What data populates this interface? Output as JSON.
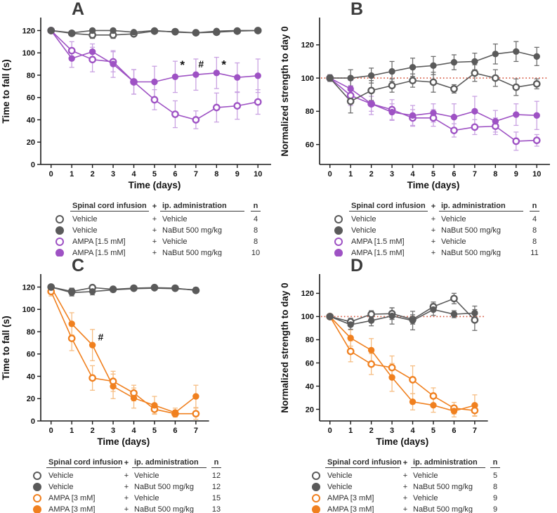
{
  "colors": {
    "axis": "#1a1a1a",
    "text": "#111111",
    "panel_label": "#3c3c3c",
    "refline": "#d0452b",
    "gray": "#5a5a5a",
    "purple": "#9e52c4",
    "orange": "#f0801f"
  },
  "legend_headers": {
    "infusion": "Spinal cord infusion",
    "plus": "+",
    "administration": "ip. administration",
    "n": "n"
  },
  "chart_data": [
    {
      "panel": "A",
      "type": "line",
      "xlabel": "Time (days)",
      "ylabel": "Time to fall (s)",
      "x": [
        0,
        1,
        2,
        3,
        4,
        5,
        6,
        7,
        8,
        9,
        10
      ],
      "xlim": [
        -0.5,
        10.5
      ],
      "ylim": [
        0,
        131
      ],
      "yticks": [
        0,
        20,
        40,
        60,
        80,
        100,
        120
      ],
      "refline": null,
      "grid": false,
      "annotations": [
        {
          "text": "*",
          "x": 6.35,
          "y": 85.5,
          "size": 17
        },
        {
          "text": "#",
          "x": 7.25,
          "y": 87,
          "size": 14
        },
        {
          "text": "*",
          "x": 8.35,
          "y": 86,
          "size": 17
        }
      ],
      "series": [
        {
          "name": "Vehicle + Vehicle",
          "marker": "open",
          "color": "#5a5a5a",
          "err_color": "#6e6e6e",
          "values": [
            120,
            117.5,
            116,
            116,
            117,
            119.5,
            119,
            118,
            118.5,
            119.5,
            120
          ],
          "err": [
            2,
            2,
            3,
            3,
            2,
            1.5,
            2,
            2,
            2,
            1.5,
            1.5
          ]
        },
        {
          "name": "Vehicle + NaBut 500 mg/kg",
          "marker": "filled",
          "color": "#5a5a5a",
          "err_color": "#6e6e6e",
          "values": [
            120,
            118,
            120,
            120,
            118.5,
            120,
            118.5,
            118,
            119.5,
            120,
            120
          ],
          "err": [
            1.5,
            1.5,
            1.5,
            1.5,
            1.5,
            1.5,
            1.5,
            1.5,
            1.5,
            1.5,
            1.5
          ]
        },
        {
          "name": "AMPA [1.5 mM] + Vehicle",
          "marker": "open",
          "color": "#9e52c4",
          "err_color": "#c9a2e2",
          "values": [
            120,
            102,
            94,
            92,
            74,
            58,
            45,
            40,
            51,
            52.5,
            56
          ],
          "err": [
            0,
            8,
            11,
            9,
            11,
            9,
            12,
            8,
            13,
            12,
            11
          ]
        },
        {
          "name": "AMPA [1.5 mM] + NaBut 500 mg/kg",
          "marker": "filled",
          "color": "#9e52c4",
          "err_color": "#c9a2e2",
          "values": [
            120,
            95,
            101,
            90,
            74,
            74,
            78.5,
            80.5,
            82,
            78,
            79.5
          ],
          "err": [
            0,
            8,
            7,
            12,
            11,
            14,
            14,
            14,
            14,
            13,
            15
          ]
        }
      ],
      "legend_rows": [
        {
          "marker": "open",
          "color": "#5a5a5a",
          "infusion": "Vehicle",
          "administration": "Vehicle",
          "n": "4"
        },
        {
          "marker": "filled",
          "color": "#5a5a5a",
          "infusion": "Vehicle",
          "administration": "NaBut 500 mg/kg",
          "n": "8"
        },
        {
          "marker": "open",
          "color": "#9e52c4",
          "infusion": "AMPA [1.5 mM]",
          "administration": "Vehicle",
          "n": "8"
        },
        {
          "marker": "filled",
          "color": "#9e52c4",
          "infusion": "AMPA [1.5 mM]",
          "administration": "NaBut 500 mg/kg",
          "n": "10"
        }
      ]
    },
    {
      "panel": "B",
      "type": "line",
      "xlabel": "Time (days)",
      "ylabel": "Normalized strength to day 0",
      "x": [
        0,
        1,
        2,
        3,
        4,
        5,
        6,
        7,
        8,
        9,
        10
      ],
      "xlim": [
        -0.5,
        10.5
      ],
      "ylim": [
        48,
        136
      ],
      "yticks": [
        60,
        80,
        100,
        120
      ],
      "refline": 100,
      "grid": false,
      "annotations": [],
      "series": [
        {
          "name": "Vehicle + Vehicle",
          "marker": "open",
          "color": "#5a5a5a",
          "err_color": "#6e6e6e",
          "values": [
            100,
            86,
            92.5,
            95.5,
            98.5,
            97.5,
            93.5,
            103,
            100,
            94.5,
            96.5
          ],
          "err": [
            0,
            7,
            6,
            4,
            4,
            6,
            2.5,
            5,
            5,
            5,
            3
          ]
        },
        {
          "name": "Vehicle + NaBut 500 mg/kg",
          "marker": "filled",
          "color": "#5a5a5a",
          "err_color": "#6e6e6e",
          "values": [
            100,
            100,
            101.5,
            104,
            106.5,
            107.5,
            109.5,
            110,
            114.5,
            116,
            113
          ],
          "err": [
            2,
            5,
            4.5,
            6,
            5.5,
            5.5,
            4.5,
            5,
            6,
            6,
            5.5
          ]
        },
        {
          "name": "AMPA [1.5 mM] + Vehicle",
          "marker": "open",
          "color": "#9e52c4",
          "err_color": "#c9a2e2",
          "values": [
            100,
            89.5,
            84.5,
            81,
            76,
            76,
            68.5,
            70.5,
            71,
            62,
            62.5
          ],
          "err": [
            0,
            6,
            6.5,
            6,
            5,
            5,
            4,
            4.5,
            5,
            5.5,
            3.5
          ]
        },
        {
          "name": "AMPA [1.5 mM] + NaBut 500 mg/kg",
          "marker": "filled",
          "color": "#9e52c4",
          "err_color": "#c9a2e2",
          "values": [
            100,
            93.5,
            84.5,
            79.5,
            77.5,
            79,
            76.5,
            80,
            74,
            78,
            77.5
          ],
          "err": [
            0,
            5,
            4.5,
            5,
            6,
            5.5,
            8,
            9,
            6.5,
            6.5,
            8.5
          ]
        }
      ],
      "legend_rows": [
        {
          "marker": "open",
          "color": "#5a5a5a",
          "infusion": "Vehicle",
          "administration": "Vehicle",
          "n": "4"
        },
        {
          "marker": "filled",
          "color": "#5a5a5a",
          "infusion": "Vehicle",
          "administration": "NaBut 500 mg/kg",
          "n": "8"
        },
        {
          "marker": "open",
          "color": "#9e52c4",
          "infusion": "AMPA [1.5 mM]",
          "administration": "Vehicle",
          "n": "8"
        },
        {
          "marker": "filled",
          "color": "#9e52c4",
          "infusion": "AMPA [1.5 mM]",
          "administration": "NaBut 500 mg/kg",
          "n": "11"
        }
      ]
    },
    {
      "panel": "C",
      "type": "line",
      "xlabel": "Time (days)",
      "ylabel": "Time to fall (s)",
      "x": [
        0,
        1,
        2,
        3,
        4,
        5,
        6,
        7
      ],
      "xlim": [
        -0.5,
        7.5
      ],
      "ylim": [
        0,
        131
      ],
      "yticks": [
        0,
        20,
        40,
        60,
        80,
        100,
        120
      ],
      "refline": null,
      "grid": false,
      "annotations": [
        {
          "text": "#",
          "x": 2.4,
          "y": 72,
          "size": 14
        }
      ],
      "series": [
        {
          "name": "Vehicle + Vehicle",
          "marker": "open",
          "color": "#5a5a5a",
          "err_color": "#6e6e6e",
          "values": [
            120,
            116,
            119.5,
            118,
            119,
            119.5,
            119,
            117
          ],
          "err": [
            1.5,
            3,
            1.5,
            2,
            1.5,
            1.5,
            1.5,
            2
          ]
        },
        {
          "name": "Vehicle + NaBut 500 mg/kg",
          "marker": "filled",
          "color": "#5a5a5a",
          "err_color": "#6e6e6e",
          "values": [
            120,
            115,
            116,
            117.5,
            118.5,
            119,
            118.5,
            117.5
          ],
          "err": [
            1.5,
            3,
            3,
            2,
            1.5,
            1.5,
            1.5,
            2
          ]
        },
        {
          "name": "AMPA [3 mM] + Vehicle",
          "marker": "open",
          "color": "#f0801f",
          "err_color": "#f6bd82",
          "values": [
            116,
            74,
            38.5,
            35.5,
            25,
            10.5,
            6.5,
            6.5
          ],
          "err": [
            4,
            11,
            11,
            9,
            7,
            4,
            3,
            5
          ]
        },
        {
          "name": "AMPA [3 mM] + NaBut 500 mg/kg",
          "marker": "filled",
          "color": "#f0801f",
          "err_color": "#f6bd82",
          "values": [
            120,
            87,
            68,
            31,
            20.5,
            14,
            7.5,
            22
          ],
          "err": [
            1.5,
            10,
            14,
            11,
            9,
            8,
            4,
            10
          ]
        }
      ],
      "legend_rows": [
        {
          "marker": "open",
          "color": "#5a5a5a",
          "infusion": "Vehicle",
          "administration": "Vehicle",
          "n": "12"
        },
        {
          "marker": "filled",
          "color": "#5a5a5a",
          "infusion": "Vehicle",
          "administration": "NaBut 500 mg/kg",
          "n": "12"
        },
        {
          "marker": "open",
          "color": "#f0801f",
          "infusion": "AMPA [3 mM]",
          "administration": "Vehicle",
          "n": "15"
        },
        {
          "marker": "filled",
          "color": "#f0801f",
          "infusion": "AMPA [3 mM]",
          "administration": "NaBut 500 mg/kg",
          "n": "13"
        }
      ]
    },
    {
      "panel": "D",
      "type": "line",
      "xlabel": "Time (days)",
      "ylabel": "Normalized strength to day 0",
      "x": [
        0,
        1,
        2,
        3,
        4,
        5,
        6,
        7
      ],
      "xlim": [
        -0.5,
        7.5
      ],
      "ylim": [
        10,
        136
      ],
      "yticks": [
        20,
        40,
        60,
        80,
        100,
        120
      ],
      "refline": 100,
      "grid": false,
      "annotations": [],
      "series": [
        {
          "name": "Vehicle + Vehicle",
          "marker": "open",
          "color": "#5a5a5a",
          "err_color": "#6e6e6e",
          "values": [
            100,
            95.5,
            102,
            102.5,
            97.5,
            108.5,
            115.5,
            97
          ],
          "err": [
            0,
            3,
            3,
            5,
            4,
            4,
            4.5,
            9
          ]
        },
        {
          "name": "Vehicle + NaBut 500 mg/kg",
          "marker": "filled",
          "color": "#5a5a5a",
          "err_color": "#6e6e6e",
          "values": [
            100,
            93,
            96.5,
            100.5,
            96.5,
            106,
            102,
            103
          ],
          "err": [
            0,
            4,
            4.5,
            7,
            8,
            5,
            3,
            6
          ]
        },
        {
          "name": "AMPA [3 mM] + Vehicle",
          "marker": "open",
          "color": "#f0801f",
          "err_color": "#f6bd82",
          "values": [
            100,
            70,
            59,
            56,
            45.5,
            31.5,
            21,
            19
          ],
          "err": [
            0,
            9,
            9,
            10,
            12,
            7,
            5,
            5
          ]
        },
        {
          "name": "AMPA [3 mM] + NaBut 500 mg/kg",
          "marker": "filled",
          "color": "#f0801f",
          "err_color": "#f6bd82",
          "values": [
            100,
            81.5,
            71,
            47.5,
            26.5,
            23.5,
            18.5,
            23.5
          ],
          "err": [
            0,
            7,
            10,
            12,
            7,
            6,
            5,
            9
          ]
        }
      ],
      "legend_rows": [
        {
          "marker": "open",
          "color": "#5a5a5a",
          "infusion": "Vehicle",
          "administration": "Vehicle",
          "n": "5"
        },
        {
          "marker": "filled",
          "color": "#5a5a5a",
          "infusion": "Vehicle",
          "administration": "NaBut 500 mg/kg",
          "n": "8"
        },
        {
          "marker": "open",
          "color": "#f0801f",
          "infusion": "AMPA [3 mM]",
          "administration": "Vehicle",
          "n": "9"
        },
        {
          "marker": "filled",
          "color": "#f0801f",
          "infusion": "AMPA [3 mM]",
          "administration": "NaBut 500 mg/kg",
          "n": "9"
        }
      ]
    }
  ]
}
